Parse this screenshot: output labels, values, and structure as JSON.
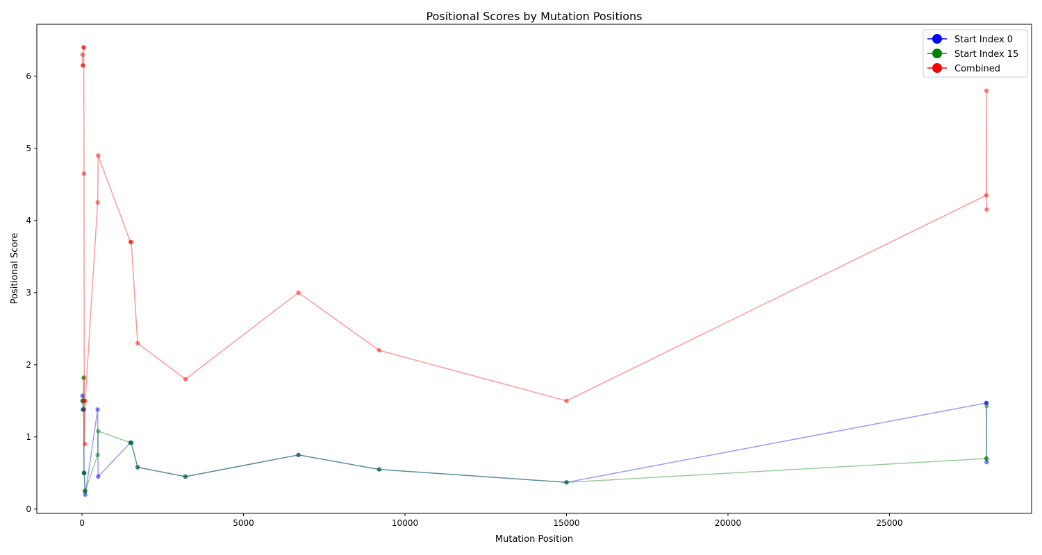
{
  "chart_data": {
    "type": "line",
    "title": "Positional Scores by Mutation Positions",
    "xlabel": "Mutation Position",
    "ylabel": "Positional Score",
    "xlim": [
      -1400,
      29400
    ],
    "ylim": [
      -0.06,
      6.72
    ],
    "xticks": [
      0,
      5000,
      10000,
      15000,
      20000,
      25000
    ],
    "yticks": [
      0,
      1,
      2,
      3,
      4,
      5,
      6
    ],
    "grid": false,
    "legend_position": "top-right",
    "series": [
      {
        "name": "Start Index 0",
        "color": "#0000ff",
        "x": [
          14,
          23,
          28,
          48,
          55,
          60,
          70,
          90,
          100,
          485,
          500,
          1500,
          1525,
          1720,
          3200,
          6700,
          9200,
          15000,
          28000,
          28005,
          28010
        ],
        "y": [
          1.57,
          1.5,
          1.38,
          1.38,
          1.38,
          0.5,
          0.5,
          0.25,
          0.2,
          1.38,
          0.45,
          0.92,
          0.92,
          0.58,
          0.45,
          0.75,
          0.55,
          0.37,
          1.47,
          1.47,
          0.65
        ]
      },
      {
        "name": "Start Index 15",
        "color": "#008000",
        "x": [
          14,
          23,
          28,
          48,
          55,
          60,
          70,
          90,
          100,
          485,
          500,
          1500,
          1525,
          1720,
          3200,
          6700,
          9200,
          15000,
          28000,
          28005,
          28010
        ],
        "y": [
          1.5,
          1.5,
          1.38,
          1.82,
          1.82,
          0.5,
          0.5,
          0.25,
          0.25,
          0.75,
          1.08,
          0.92,
          0.92,
          0.58,
          0.45,
          0.75,
          0.55,
          0.37,
          0.7,
          0.7,
          1.43
        ]
      },
      {
        "name": "Combined",
        "color": "#ff0000",
        "x": [
          14,
          23,
          28,
          48,
          55,
          60,
          70,
          90,
          100,
          485,
          500,
          1500,
          1525,
          1720,
          3200,
          6700,
          9200,
          15000,
          28000,
          28005,
          28010
        ],
        "y": [
          6.3,
          6.15,
          6.15,
          6.4,
          6.4,
          4.65,
          1.5,
          0.9,
          1.5,
          4.25,
          4.9,
          3.7,
          3.7,
          2.3,
          1.8,
          3.0,
          2.2,
          1.5,
          4.35,
          5.8,
          4.15
        ]
      }
    ]
  }
}
